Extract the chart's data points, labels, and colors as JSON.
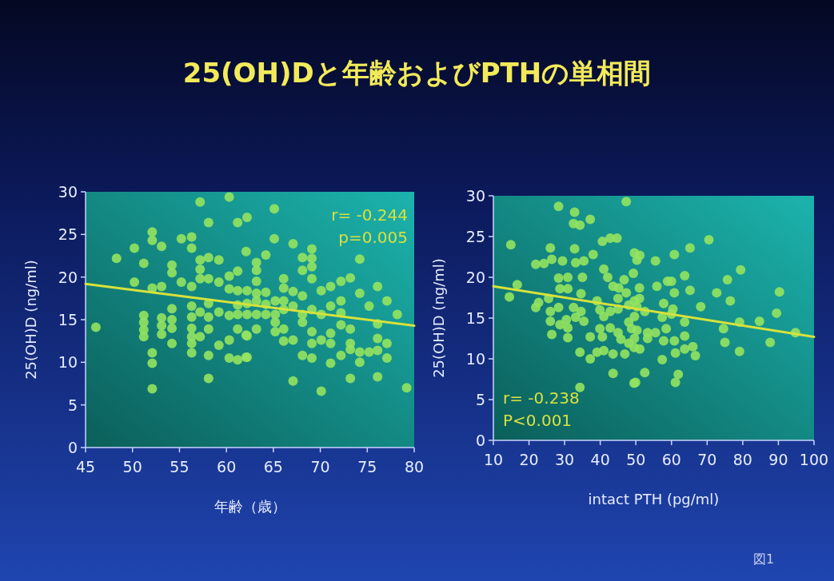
{
  "chart_data": [
    {
      "type": "scatter",
      "title": "25(OH)Dと年齢およびPTHの単相間",
      "xlabel": "年齢（歳）",
      "ylabel": "25(OH)D (ng/ml)",
      "xlim": [
        45,
        80
      ],
      "xticks": [
        45,
        50,
        55,
        60,
        65,
        70,
        75,
        80
      ],
      "ylim": [
        0,
        30
      ],
      "yticks": [
        0,
        5,
        10,
        15,
        20,
        25,
        30
      ],
      "annotations": [
        "r= -0.244",
        "p=0.005"
      ],
      "series": [
        {
          "color": "#93e35f",
          "marker": "circle",
          "x": [
            46.1,
            48.3,
            50.2,
            50.2,
            51.2,
            51.2,
            51.2,
            51.2,
            51.2,
            52.1,
            52.1,
            52.1,
            52.1,
            52.1,
            52.1,
            53.1,
            53.1,
            53.1,
            53.1,
            53.1,
            54.2,
            54.2,
            54.2,
            54.2,
            54.2,
            54.2,
            55.2,
            55.2,
            56.3,
            56.3,
            56.3,
            56.3,
            56.3,
            56.3,
            56.3,
            56.3,
            56.3,
            57.2,
            57.2,
            57.2,
            57.2,
            57.2,
            57.2,
            58.1,
            58.1,
            58.1,
            58.1,
            58.1,
            58.1,
            58.1,
            58.1,
            59.2,
            59.2,
            59.2,
            59.2,
            60.3,
            60.3,
            60.3,
            60.3,
            60.3,
            60.3,
            61.2,
            61.2,
            61.2,
            61.2,
            61.2,
            62.1,
            62.1,
            62.1,
            62.2,
            65.1,
            65.1,
            64.2,
            67.1,
            68.1,
            69.1,
            69.1,
            69.1,
            68.1,
            69.1,
            63.2,
            63.2,
            63.2,
            62.2,
            63.2,
            64.2,
            66.1,
            66.1,
            67.1,
            68.1,
            62.2,
            63.2,
            64.2,
            65.2,
            66.1,
            67.1,
            62.2,
            63.2,
            64.2,
            65.2,
            66.1,
            68.1,
            69.1,
            70.1,
            71.1,
            72.2,
            73.2,
            70.1,
            71.1,
            72.2,
            72.2,
            74.2,
            74.2,
            76.1,
            75.2,
            77.1,
            78.2,
            61.2,
            62.2,
            63.2,
            65.2,
            65.2,
            66.1,
            66.1,
            67.1,
            68.1,
            69.1,
            69.1,
            70.1,
            71.1,
            71.1,
            72.2,
            73.2,
            73.2,
            74.2,
            75.2,
            76.1,
            76.1,
            77.1,
            76.1,
            62.2,
            61.2,
            68.1,
            69.1,
            71.1,
            72.2,
            73.2,
            74.2,
            77.1,
            67.1,
            70.1,
            73.2,
            76.1,
            79.2
          ],
          "values": [
            14.1,
            22.2,
            23.4,
            19.4,
            21.6,
            15.5,
            14.7,
            13.8,
            13.0,
            25.3,
            24.3,
            18.7,
            11.1,
            9.9,
            6.9,
            23.6,
            18.9,
            15.2,
            14.3,
            13.3,
            21.4,
            20.5,
            16.3,
            15.0,
            14.0,
            12.2,
            24.5,
            19.4,
            24.7,
            23.4,
            18.9,
            16.6,
            15.3,
            14.0,
            13.0,
            12.2,
            11.1,
            28.8,
            22.0,
            20.9,
            19.8,
            15.9,
            13.0,
            26.4,
            22.3,
            19.8,
            16.9,
            15.3,
            13.9,
            10.8,
            8.1,
            22.0,
            19.4,
            15.9,
            12.0,
            29.4,
            20.1,
            18.6,
            15.5,
            12.6,
            10.5,
            26.4,
            20.7,
            18.4,
            16.7,
            15.6,
            23.0,
            13.2,
            10.6,
            27.0,
            28.0,
            24.5,
            22.6,
            23.9,
            22.3,
            23.3,
            22.2,
            21.2,
            20.8,
            19.8,
            21.7,
            20.8,
            19.5,
            18.4,
            18.1,
            18.2,
            19.8,
            18.7,
            18.3,
            17.8,
            16.9,
            17.2,
            16.8,
            17.2,
            17.2,
            16.6,
            15.6,
            15.6,
            15.6,
            15.6,
            16.2,
            15.6,
            16.2,
            18.4,
            18.9,
            19.5,
            19.9,
            15.6,
            16.6,
            17.2,
            15.8,
            22.1,
            18.1,
            18.9,
            16.6,
            17.2,
            15.6,
            13.9,
            13.1,
            13.9,
            14.7,
            13.6,
            13.9,
            12.5,
            12.6,
            14.7,
            13.6,
            12.2,
            12.6,
            13.4,
            12.2,
            14.4,
            13.9,
            12.2,
            11.2,
            11.2,
            12.8,
            11.4,
            12.2,
            14.5,
            10.6,
            10.3,
            10.8,
            10.5,
            9.9,
            10.8,
            11.5,
            10.0,
            10.5,
            7.8,
            6.6,
            8.1,
            8.3,
            7.0
          ]
        },
        {
          "type": "line",
          "color": "#d6e23c",
          "marker": "none",
          "x": [
            45,
            80
          ],
          "values": [
            19.2,
            14.3
          ]
        }
      ]
    },
    {
      "type": "scatter",
      "xlabel": "intact PTH (pg/ml)",
      "ylabel": "25(OH)D (ng/ml)",
      "xlim": [
        10,
        100
      ],
      "xticks": [
        10,
        20,
        30,
        40,
        50,
        60,
        70,
        80,
        90,
        100
      ],
      "ylim": [
        0,
        30
      ],
      "yticks": [
        0,
        5,
        10,
        15,
        20,
        25,
        30
      ],
      "annotations": [
        "r= -0.238",
        "P<0.001",
        "図1"
      ],
      "series": [
        {
          "color": "#93e35f",
          "marker": "circle",
          "x": [
            14.9,
            14.5,
            16.7,
            21.9,
            24.2,
            26.4,
            29.4,
            33.1,
            35.4,
            28.3,
            32.8,
            34.3,
            32.5,
            37.2,
            26.0,
            32.8,
            38.0,
            40.6,
            42.8,
            44.7,
            47.3,
            21.9,
            22.7,
            25.5,
            26.0,
            26.0,
            26.4,
            28.3,
            28.7,
            30.9,
            30.5,
            30.9,
            32.5,
            33.1,
            34.6,
            35.4,
            34.6,
            35.0,
            30.9,
            30.9,
            28.3,
            28.7,
            34.3,
            37.2,
            39.1,
            41.0,
            43.6,
            46.9,
            37.2,
            39.9,
            40.6,
            42.8,
            45.0,
            45.8,
            43.6,
            34.3,
            49.9,
            39.1,
            39.9,
            41.0,
            42.8,
            45.0,
            48.0,
            41.0,
            42.1,
            43.6,
            45.2,
            46.7,
            49.3,
            49.6,
            51.1,
            45.0,
            47.3,
            49.6,
            48.0,
            49.6,
            48.8,
            49.6,
            51.1,
            48.0,
            50.3,
            55.5,
            60.8,
            65.2,
            70.5,
            51.0,
            55.9,
            58.9,
            60.0,
            63.7,
            60.8,
            65.2,
            72.7,
            75.7,
            79.4,
            76.5,
            68.2,
            90.3,
            89.5,
            51.0,
            50.3,
            52.5,
            57.8,
            60.4,
            63.7,
            57.4,
            60.0,
            50.3,
            53.3,
            55.5,
            58.5,
            53.3,
            57.8,
            60.8,
            63.7,
            63.7,
            61.1,
            66.0,
            66.7,
            74.6,
            75.0,
            79.1,
            84.7,
            79.1,
            87.7,
            94.8,
            49.5,
            57.4,
            52.5,
            61.9,
            61.1,
            49.5
          ],
          "values": [
            24.0,
            17.6,
            19.1,
            21.6,
            21.7,
            22.2,
            22.0,
            21.8,
            22.0,
            28.7,
            28.0,
            26.4,
            26.6,
            27.1,
            23.6,
            23.5,
            22.8,
            24.4,
            24.8,
            24.8,
            29.3,
            16.3,
            16.9,
            17.4,
            15.8,
            14.6,
            13.0,
            16.3,
            14.2,
            12.6,
            14.8,
            13.8,
            16.3,
            15.1,
            15.8,
            14.6,
            18.0,
            20.0,
            20.0,
            18.6,
            19.9,
            18.6,
            10.8,
            10.0,
            10.8,
            11.0,
            10.6,
            10.6,
            12.7,
            13.7,
            12.7,
            13.8,
            13.2,
            12.4,
            8.2,
            6.5,
            7.1,
            17.1,
            16.0,
            15.2,
            15.8,
            16.1,
            16.6,
            21.0,
            20.0,
            18.9,
            18.7,
            19.7,
            20.5,
            23.0,
            22.7,
            17.4,
            18.1,
            17.1,
            14.5,
            15.2,
            13.7,
            12.5,
            11.2,
            11.9,
            22.1,
            22.0,
            22.8,
            23.6,
            24.6,
            18.7,
            18.9,
            19.5,
            19.5,
            20.2,
            18.1,
            18.4,
            18.1,
            19.7,
            20.9,
            17.1,
            16.4,
            18.2,
            15.6,
            17.4,
            16.4,
            15.8,
            16.8,
            16.1,
            14.5,
            15.1,
            15.5,
            13.5,
            13.2,
            13.2,
            13.7,
            12.5,
            12.2,
            12.2,
            12.8,
            11.2,
            10.7,
            11.5,
            10.4,
            13.7,
            12.0,
            14.5,
            14.6,
            10.9,
            12.0,
            13.2,
            11.4,
            9.9,
            8.3,
            8.1,
            7.1,
            7.0
          ]
        },
        {
          "type": "line",
          "color": "#d6e23c",
          "marker": "none",
          "x": [
            10,
            100
          ],
          "values": [
            18.9,
            12.7
          ]
        }
      ]
    }
  ]
}
